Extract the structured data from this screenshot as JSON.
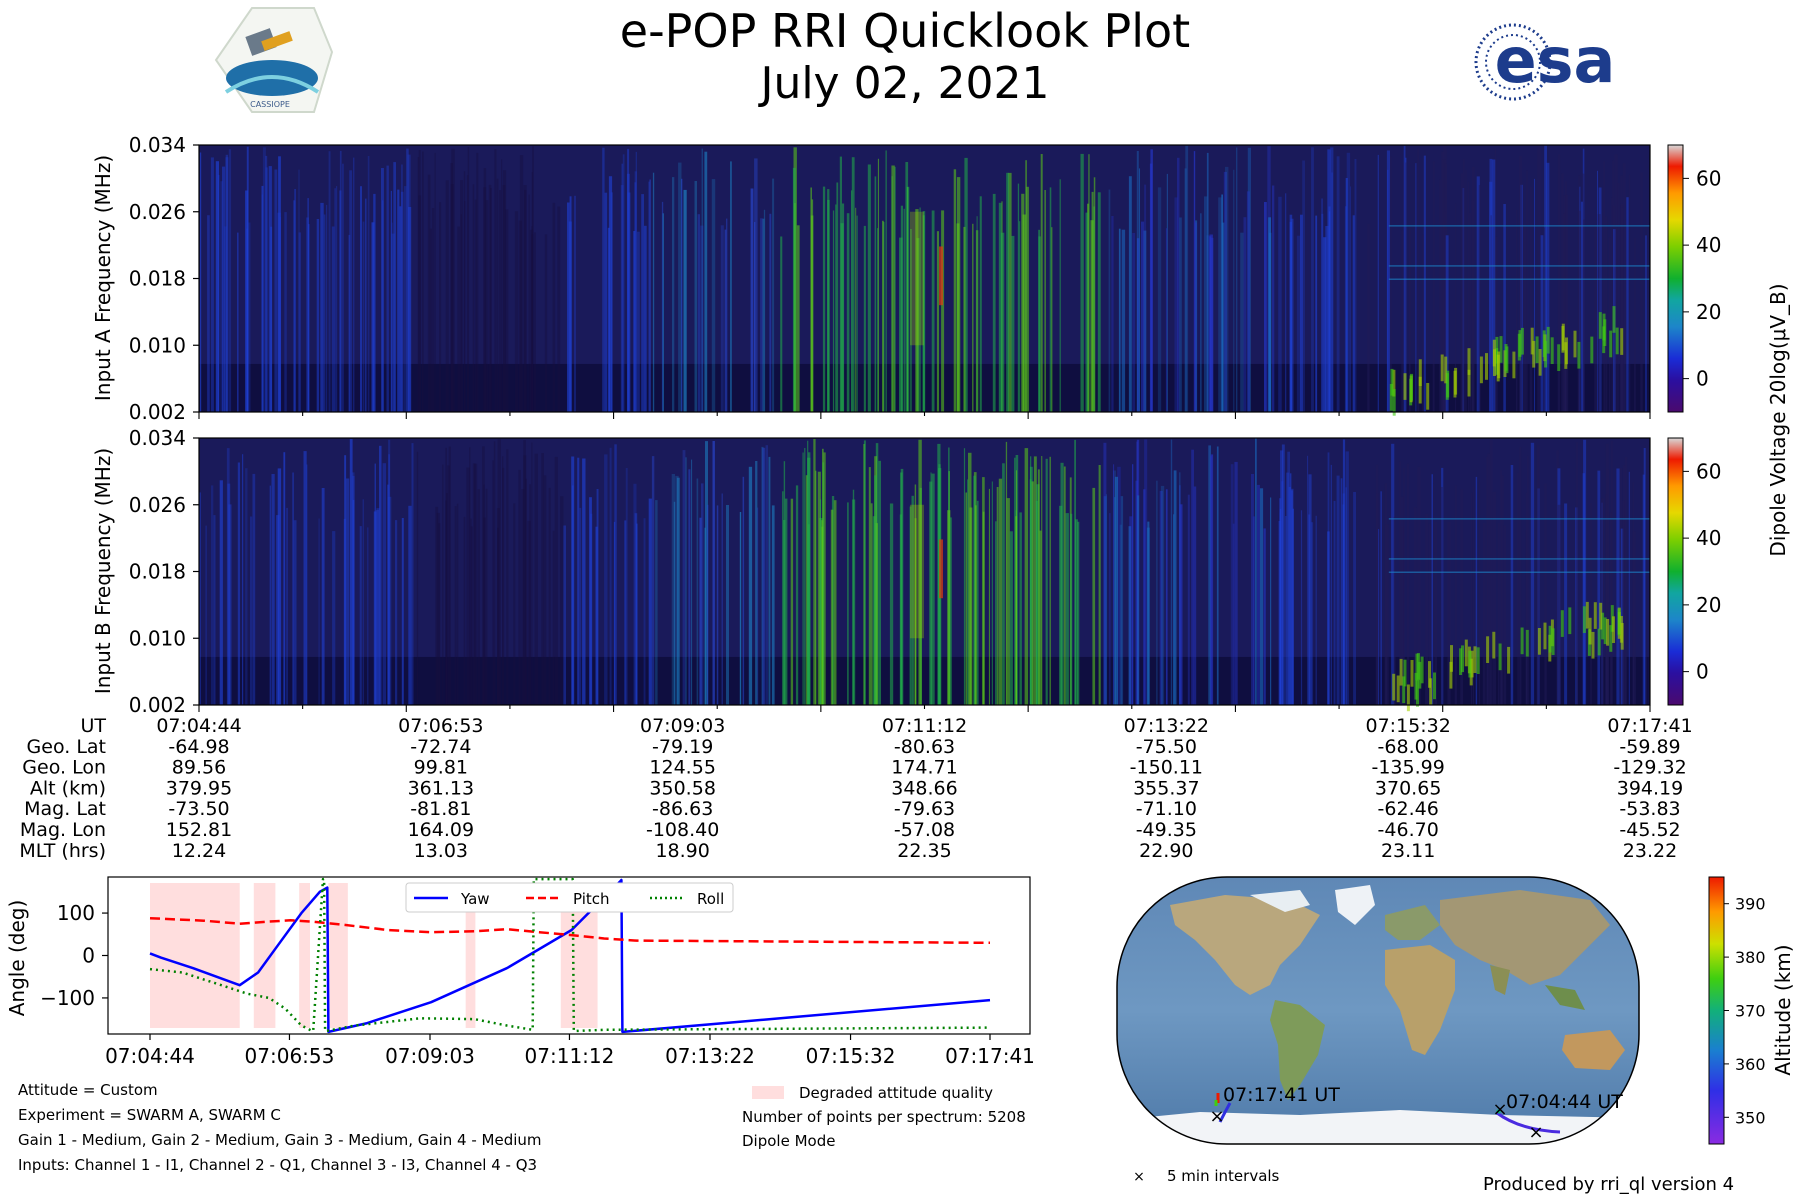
{
  "header": {
    "title": "e-POP RRI Quicklook Plot",
    "date": "July 02, 2021",
    "logo_left": "CASSIOPE",
    "logo_right": "esa"
  },
  "colors": {
    "yaw": "#0000ff",
    "pitch": "#ff0000",
    "roll": "#008000",
    "degraded": "#ffdede"
  },
  "chart_data": [
    {
      "type": "heatmap",
      "name": "spectrogram-a",
      "ylabel": "Input A Frequency (MHz)",
      "yticks": [
        "0.002",
        "0.010",
        "0.018",
        "0.026",
        "0.034"
      ],
      "ylim": [
        0.002,
        0.034
      ],
      "time_range": [
        "07:04:44",
        "07:17:41"
      ],
      "colorbar": {
        "label": "Dipole Voltage 20log(μV_B)",
        "ticks": [
          "0",
          "20",
          "40",
          "60"
        ],
        "range": [
          -10,
          70
        ]
      }
    },
    {
      "type": "heatmap",
      "name": "spectrogram-b",
      "ylabel": "Input B Frequency (MHz)",
      "yticks": [
        "0.002",
        "0.010",
        "0.018",
        "0.026",
        "0.034"
      ],
      "ylim": [
        0.002,
        0.034
      ],
      "time_range": [
        "07:04:44",
        "07:17:41"
      ],
      "colorbar": {
        "ticks": [
          "0",
          "20",
          "40",
          "60"
        ],
        "range": [
          -10,
          70
        ]
      }
    },
    {
      "type": "table",
      "name": "ephemeris",
      "rows": [
        {
          "label": "UT",
          "values": [
            "07:04:44",
            "07:06:53",
            "07:09:03",
            "07:11:12",
            "07:13:22",
            "07:15:32",
            "07:17:41"
          ]
        },
        {
          "label": "Geo. Lat",
          "values": [
            "-64.98",
            "-72.74",
            "-79.19",
            "-80.63",
            "-75.50",
            "-68.00",
            "-59.89"
          ]
        },
        {
          "label": "Geo. Lon",
          "values": [
            "89.56",
            "99.81",
            "124.55",
            "174.71",
            "-150.11",
            "-135.99",
            "-129.32"
          ]
        },
        {
          "label": "Alt (km)",
          "values": [
            "379.95",
            "361.13",
            "350.58",
            "348.66",
            "355.37",
            "370.65",
            "394.19"
          ]
        },
        {
          "label": "Mag. Lat",
          "values": [
            "-73.50",
            "-81.81",
            "-86.63",
            "-79.63",
            "-71.10",
            "-62.46",
            "-53.83"
          ]
        },
        {
          "label": "Mag. Lon",
          "values": [
            "152.81",
            "164.09",
            "-108.40",
            "-57.08",
            "-49.35",
            "-46.70",
            "-45.52"
          ]
        },
        {
          "label": "MLT (hrs)",
          "values": [
            "12.24",
            "13.03",
            "18.90",
            "22.35",
            "22.90",
            "23.11",
            "23.22"
          ]
        }
      ]
    },
    {
      "type": "line",
      "name": "attitude",
      "ylabel": "Angle (deg)",
      "ylim": [
        -185,
        185
      ],
      "yticks": [
        100,
        0,
        -100
      ],
      "yticklabels": [
        "100",
        "0",
        "−100"
      ],
      "xlim": [
        0,
        777
      ],
      "xticks": [
        0,
        129,
        259,
        388,
        518,
        648,
        777
      ],
      "xticklabels": [
        "07:04:44",
        "07:06:53",
        "07:09:03",
        "07:11:12",
        "07:13:22",
        "07:15:32",
        "07:17:41"
      ],
      "legend": [
        "Yaw",
        "Pitch",
        "Roll"
      ],
      "degraded_intervals": [
        [
          0,
          83
        ],
        [
          96,
          116
        ],
        [
          138,
          148
        ],
        [
          165,
          183
        ],
        [
          292,
          301
        ],
        [
          380,
          414
        ]
      ],
      "series": [
        {
          "name": "Yaw",
          "x": [
            0,
            10,
            40,
            83,
            100,
            120,
            140,
            157,
            164,
            165,
            200,
            260,
            330,
            390,
            435,
            436,
            437,
            777
          ],
          "y": [
            5,
            -5,
            -30,
            -70,
            -40,
            30,
            100,
            150,
            160,
            -180,
            -160,
            -110,
            -30,
            60,
            175,
            178,
            -180,
            -105
          ]
        },
        {
          "name": "Pitch",
          "x": [
            0,
            50,
            83,
            110,
            130,
            150,
            180,
            220,
            260,
            300,
            330,
            360,
            390,
            420,
            450,
            777
          ],
          "y": [
            88,
            82,
            75,
            80,
            83,
            80,
            72,
            60,
            55,
            57,
            62,
            55,
            48,
            40,
            35,
            30
          ]
        },
        {
          "name": "Roll",
          "x": [
            0,
            30,
            60,
            90,
            110,
            125,
            140,
            150,
            151,
            160,
            161,
            162,
            163,
            190,
            250,
            300,
            330,
            354,
            355,
            390,
            391,
            392,
            393,
            420,
            777
          ],
          "y": [
            -32,
            -40,
            -65,
            -90,
            -100,
            -125,
            -165,
            -178,
            -178,
            180,
            180,
            -178,
            -178,
            -165,
            -148,
            -150,
            -165,
            -175,
            180,
            180,
            180,
            -178,
            -178,
            -175,
            -170
          ]
        }
      ]
    },
    {
      "type": "scatter",
      "name": "ground-track",
      "colorbar_label": "Altitude (km)",
      "colorbar_ticks": [
        "350",
        "360",
        "370",
        "380",
        "390"
      ],
      "colorbar_range": [
        345,
        395
      ],
      "start_label": "07:04:44 UT",
      "end_label": "07:17:41 UT",
      "marker_legend": "5 min intervals"
    }
  ],
  "footer": {
    "attitude": "Attitude = Custom",
    "experiment": "Experiment = SWARM A, SWARM C",
    "gains": "Gain 1 - Medium, Gain 2 - Medium, Gain 3 - Medium, Gain 4 - Medium",
    "inputs": "Inputs: Channel 1 - I1, Channel 2 - Q1, Channel 3 - I3, Channel 4 - Q3",
    "degraded_label": "Degraded attitude quality",
    "points": "Number of points per spectrum: 5208",
    "mode": "Dipole Mode",
    "produced_by": "Produced by rri_ql version 4"
  }
}
